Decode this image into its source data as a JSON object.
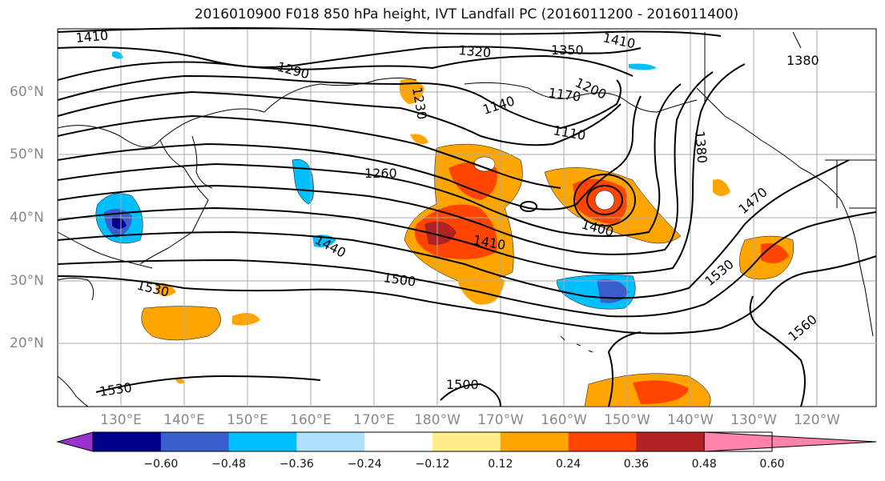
{
  "title": "2016010900 F018 850 hPa height, IVT Landfall PC (2016011200 - 2016011400)",
  "lon_labels": [
    "130°E",
    "140°E",
    "150°E",
    "160°E",
    "170°E",
    "180°W",
    "170°W",
    "160°W",
    "150°W",
    "140°W",
    "130°W",
    "120°W"
  ],
  "lat_labels": [
    "60°N",
    "50°N",
    "40°N",
    "30°N",
    "20°N"
  ],
  "contour_labels": [
    "1410",
    "1320",
    "1350",
    "1410",
    "1380",
    "1290",
    "1230",
    "1200",
    "1170",
    "1140",
    "1110",
    "1380",
    "1260",
    "1470",
    "1440",
    "1410",
    "1400",
    "1500",
    "1530",
    "1530",
    "1560",
    "1530",
    "1500"
  ],
  "colorbar": {
    "ticks": [
      "−0.60",
      "−0.48",
      "−0.36",
      "−0.24",
      "−0.12",
      "0.12",
      "0.24",
      "0.36",
      "0.48",
      "0.60"
    ],
    "colors": [
      "#9a32cd",
      "#00008b",
      "#3a5fcd",
      "#00bfff",
      "#b0e2ff",
      "#ffffff",
      "#ffec8b",
      "#ffa500",
      "#ff4500",
      "#b22222",
      "#ff82ab"
    ]
  }
}
